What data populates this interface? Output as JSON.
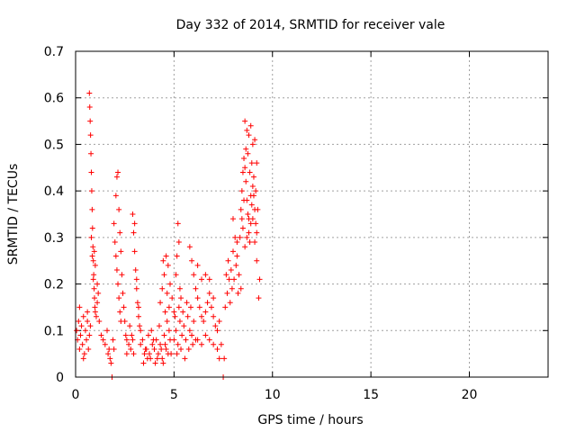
{
  "chart_data": {
    "type": "scatter",
    "title": "Day 332 of 2014, SRMTID for receiver vale",
    "xlabel": "GPS time / hours",
    "ylabel": "SRMTID / TECUs",
    "xlim": [
      0,
      24
    ],
    "ylim": [
      0,
      0.7
    ],
    "xticks": [
      0,
      5,
      10,
      15,
      20
    ],
    "xtick_labels": [
      "0",
      "5",
      "10",
      "15",
      "20"
    ],
    "yticks": [
      0,
      0.1,
      0.2,
      0.3,
      0.4,
      0.5,
      0.6,
      0.7
    ],
    "ytick_labels": [
      "0",
      "0.1",
      "0.2",
      "0.3",
      "0.4",
      "0.5",
      "0.6",
      "0.7"
    ],
    "grid": true,
    "marker": "+",
    "color": "#ff0000",
    "series": [
      {
        "name": "SRMTID",
        "points": [
          [
            0.05,
            0.1
          ],
          [
            0.1,
            0.08
          ],
          [
            0.15,
            0.12
          ],
          [
            0.2,
            0.06
          ],
          [
            0.25,
            0.09
          ],
          [
            0.3,
            0.11
          ],
          [
            0.35,
            0.07
          ],
          [
            0.4,
            0.13
          ],
          [
            0.45,
            0.05
          ],
          [
            0.5,
            0.1
          ],
          [
            0.55,
            0.08
          ],
          [
            0.6,
            0.12
          ],
          [
            0.65,
            0.06
          ],
          [
            0.7,
            0.09
          ],
          [
            0.75,
            0.11
          ],
          [
            0.2,
            0.15
          ],
          [
            0.4,
            0.04
          ],
          [
            0.6,
            0.14
          ],
          [
            0.7,
            0.61
          ],
          [
            0.72,
            0.58
          ],
          [
            0.74,
            0.55
          ],
          [
            0.76,
            0.52
          ],
          [
            0.78,
            0.48
          ],
          [
            0.8,
            0.44
          ],
          [
            0.82,
            0.4
          ],
          [
            0.84,
            0.36
          ],
          [
            0.86,
            0.32
          ],
          [
            0.88,
            0.28
          ],
          [
            0.9,
            0.25
          ],
          [
            0.92,
            0.22
          ],
          [
            0.94,
            0.19
          ],
          [
            0.96,
            0.17
          ],
          [
            0.98,
            0.15
          ],
          [
            1.0,
            0.14
          ],
          [
            1.05,
            0.13
          ],
          [
            1.1,
            0.16
          ],
          [
            1.15,
            0.18
          ],
          [
            1.2,
            0.12
          ],
          [
            0.8,
            0.3
          ],
          [
            0.85,
            0.26
          ],
          [
            0.9,
            0.21
          ],
          [
            0.95,
            0.27
          ],
          [
            1.0,
            0.24
          ],
          [
            1.1,
            0.2
          ],
          [
            1.3,
            0.09
          ],
          [
            1.4,
            0.08
          ],
          [
            1.5,
            0.07
          ],
          [
            1.6,
            0.1
          ],
          [
            1.65,
            0.05
          ],
          [
            1.7,
            0.06
          ],
          [
            1.75,
            0.04
          ],
          [
            1.8,
            0.03
          ],
          [
            1.85,
            0.0
          ],
          [
            1.9,
            0.08
          ],
          [
            1.95,
            0.06
          ],
          [
            1.95,
            0.33
          ],
          [
            2.0,
            0.29
          ],
          [
            2.05,
            0.26
          ],
          [
            2.1,
            0.23
          ],
          [
            2.15,
            0.2
          ],
          [
            2.2,
            0.17
          ],
          [
            2.25,
            0.14
          ],
          [
            2.3,
            0.12
          ],
          [
            2.05,
            0.39
          ],
          [
            2.1,
            0.43
          ],
          [
            2.15,
            0.44
          ],
          [
            2.2,
            0.36
          ],
          [
            2.25,
            0.31
          ],
          [
            2.3,
            0.27
          ],
          [
            2.35,
            0.22
          ],
          [
            2.4,
            0.18
          ],
          [
            2.45,
            0.15
          ],
          [
            2.5,
            0.12
          ],
          [
            2.55,
            0.09
          ],
          [
            2.6,
            0.08
          ],
          [
            2.7,
            0.07
          ],
          [
            2.8,
            0.06
          ],
          [
            2.9,
            0.08
          ],
          [
            2.95,
            0.05
          ],
          [
            2.75,
            0.11
          ],
          [
            2.85,
            0.09
          ],
          [
            2.6,
            0.05
          ],
          [
            2.9,
            0.35
          ],
          [
            2.95,
            0.31
          ],
          [
            3.0,
            0.27
          ],
          [
            3.05,
            0.23
          ],
          [
            3.1,
            0.19
          ],
          [
            3.15,
            0.16
          ],
          [
            3.2,
            0.13
          ],
          [
            3.25,
            0.11
          ],
          [
            3.3,
            0.1
          ],
          [
            3.0,
            0.33
          ],
          [
            3.1,
            0.21
          ],
          [
            3.2,
            0.15
          ],
          [
            3.3,
            0.07
          ],
          [
            3.4,
            0.08
          ],
          [
            3.5,
            0.05
          ],
          [
            3.6,
            0.06
          ],
          [
            3.7,
            0.09
          ],
          [
            3.8,
            0.04
          ],
          [
            3.9,
            0.07
          ],
          [
            4.0,
            0.06
          ],
          [
            4.1,
            0.08
          ],
          [
            4.2,
            0.05
          ],
          [
            4.3,
            0.07
          ],
          [
            4.4,
            0.04
          ],
          [
            4.5,
            0.09
          ],
          [
            4.6,
            0.06
          ],
          [
            4.7,
            0.05
          ],
          [
            4.8,
            0.08
          ],
          [
            3.45,
            0.03
          ],
          [
            3.65,
            0.04
          ],
          [
            3.85,
            0.1
          ],
          [
            4.05,
            0.03
          ],
          [
            4.25,
            0.11
          ],
          [
            4.45,
            0.03
          ],
          [
            4.65,
            0.12
          ],
          [
            3.55,
            0.06
          ],
          [
            3.75,
            0.05
          ],
          [
            3.95,
            0.08
          ],
          [
            4.15,
            0.04
          ],
          [
            4.35,
            0.06
          ],
          [
            4.55,
            0.07
          ],
          [
            4.75,
            0.1
          ],
          [
            4.85,
            0.05
          ],
          [
            4.3,
            0.16
          ],
          [
            4.4,
            0.19
          ],
          [
            4.5,
            0.22
          ],
          [
            4.6,
            0.26
          ],
          [
            4.7,
            0.24
          ],
          [
            4.8,
            0.2
          ],
          [
            4.9,
            0.17
          ],
          [
            5.0,
            0.14
          ],
          [
            4.55,
            0.14
          ],
          [
            4.65,
            0.18
          ],
          [
            4.45,
            0.25
          ],
          [
            4.75,
            0.15
          ],
          [
            5.0,
            0.08
          ],
          [
            5.1,
            0.1
          ],
          [
            5.2,
            0.07
          ],
          [
            5.3,
            0.12
          ],
          [
            5.4,
            0.09
          ],
          [
            5.5,
            0.11
          ],
          [
            5.6,
            0.08
          ],
          [
            5.7,
            0.13
          ],
          [
            5.8,
            0.1
          ],
          [
            5.9,
            0.09
          ],
          [
            6.0,
            0.12
          ],
          [
            6.1,
            0.08
          ],
          [
            5.15,
            0.05
          ],
          [
            5.35,
            0.06
          ],
          [
            5.55,
            0.04
          ],
          [
            5.75,
            0.06
          ],
          [
            5.95,
            0.07
          ],
          [
            5.05,
            0.13
          ],
          [
            5.25,
            0.15
          ],
          [
            5.45,
            0.14
          ],
          [
            5.65,
            0.16
          ],
          [
            5.85,
            0.15
          ],
          [
            5.1,
            0.22
          ],
          [
            5.15,
            0.26
          ],
          [
            5.2,
            0.33
          ],
          [
            5.25,
            0.29
          ],
          [
            5.3,
            0.19
          ],
          [
            5.35,
            0.17
          ],
          [
            5.8,
            0.28
          ],
          [
            5.9,
            0.25
          ],
          [
            6.0,
            0.22
          ],
          [
            6.1,
            0.19
          ],
          [
            6.2,
            0.17
          ],
          [
            6.3,
            0.15
          ],
          [
            6.4,
            0.13
          ],
          [
            6.5,
            0.12
          ],
          [
            6.6,
            0.14
          ],
          [
            6.7,
            0.16
          ],
          [
            6.8,
            0.18
          ],
          [
            6.9,
            0.15
          ],
          [
            7.0,
            0.13
          ],
          [
            7.1,
            0.11
          ],
          [
            7.2,
            0.1
          ],
          [
            7.3,
            0.12
          ],
          [
            6.2,
            0.24
          ],
          [
            6.4,
            0.21
          ],
          [
            6.6,
            0.22
          ],
          [
            6.8,
            0.21
          ],
          [
            7.0,
            0.17
          ],
          [
            6.2,
            0.08
          ],
          [
            6.4,
            0.07
          ],
          [
            6.6,
            0.09
          ],
          [
            6.8,
            0.08
          ],
          [
            7.0,
            0.07
          ],
          [
            7.2,
            0.06
          ],
          [
            7.4,
            0.07
          ],
          [
            7.5,
            0.0
          ],
          [
            7.55,
            0.04
          ],
          [
            7.3,
            0.04
          ],
          [
            7.6,
            0.15
          ],
          [
            7.7,
            0.18
          ],
          [
            7.8,
            0.21
          ],
          [
            7.9,
            0.23
          ],
          [
            8.0,
            0.27
          ],
          [
            8.1,
            0.3
          ],
          [
            8.2,
            0.26
          ],
          [
            8.3,
            0.22
          ],
          [
            8.4,
            0.19
          ],
          [
            7.75,
            0.25
          ],
          [
            7.85,
            0.16
          ],
          [
            7.95,
            0.19
          ],
          [
            8.05,
            0.21
          ],
          [
            8.15,
            0.24
          ],
          [
            8.25,
            0.18
          ],
          [
            7.65,
            0.22
          ],
          [
            8.0,
            0.34
          ],
          [
            8.2,
            0.29
          ],
          [
            8.35,
            0.3
          ],
          [
            8.4,
            0.36
          ],
          [
            8.45,
            0.4
          ],
          [
            8.5,
            0.44
          ],
          [
            8.55,
            0.47
          ],
          [
            8.6,
            0.45
          ],
          [
            8.65,
            0.42
          ],
          [
            8.7,
            0.38
          ],
          [
            8.75,
            0.35
          ],
          [
            8.8,
            0.31
          ],
          [
            8.85,
            0.29
          ],
          [
            8.9,
            0.33
          ],
          [
            8.95,
            0.37
          ],
          [
            9.0,
            0.41
          ],
          [
            9.05,
            0.39
          ],
          [
            9.1,
            0.36
          ],
          [
            9.15,
            0.33
          ],
          [
            9.2,
            0.31
          ],
          [
            8.6,
            0.55
          ],
          [
            8.7,
            0.53
          ],
          [
            8.8,
            0.52
          ],
          [
            8.9,
            0.54
          ],
          [
            9.0,
            0.5
          ],
          [
            9.1,
            0.51
          ],
          [
            9.2,
            0.46
          ],
          [
            8.5,
            0.32
          ],
          [
            8.6,
            0.28
          ],
          [
            8.7,
            0.3
          ],
          [
            8.8,
            0.34
          ],
          [
            8.9,
            0.39
          ],
          [
            9.0,
            0.34
          ],
          [
            9.1,
            0.29
          ],
          [
            9.2,
            0.25
          ],
          [
            9.3,
            0.17
          ],
          [
            9.35,
            0.21
          ],
          [
            8.65,
            0.49
          ],
          [
            8.75,
            0.48
          ],
          [
            8.85,
            0.44
          ],
          [
            8.95,
            0.46
          ],
          [
            9.05,
            0.43
          ],
          [
            9.15,
            0.4
          ],
          [
            9.25,
            0.36
          ],
          [
            8.55,
            0.38
          ],
          [
            8.45,
            0.34
          ]
        ]
      }
    ]
  }
}
